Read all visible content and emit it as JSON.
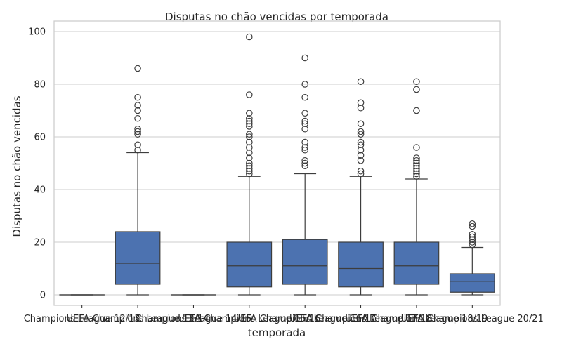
{
  "chart_data": {
    "type": "box",
    "title": "Disputas no chão vencidas por temporada",
    "xlabel": "temporada",
    "ylabel": "Disputas no chão vencidas",
    "ylim": [
      -4,
      104
    ],
    "yticks": [
      0,
      20,
      40,
      60,
      80,
      100
    ],
    "grid": true,
    "box_color": "#4c72b0",
    "line_color": "#3d3d3d",
    "categories": [
      "Champions League 12/13",
      "UEFA Champions League 13/14",
      "Champions League 14/15",
      "UEFA Champions League 15/16",
      "UEFA Champions League 16/17",
      "UEFA Champions League 17/18",
      "UEFA Champions League 18/19",
      "UEFA Champions League 20/21"
    ],
    "boxes": [
      {
        "whislo": 0,
        "q1": 0,
        "med": 0,
        "q3": 0,
        "whishi": 0,
        "fliers": []
      },
      {
        "whislo": 0,
        "q1": 4,
        "med": 12,
        "q3": 24,
        "whishi": 54,
        "fliers": [
          55,
          57,
          61,
          62,
          63,
          67,
          70,
          72,
          75,
          86
        ]
      },
      {
        "whislo": 0,
        "q1": 0,
        "med": 0,
        "q3": 0,
        "whishi": 0,
        "fliers": []
      },
      {
        "whislo": 0,
        "q1": 3,
        "med": 11,
        "q3": 20,
        "whishi": 45,
        "fliers": [
          46,
          47,
          48,
          49,
          50,
          52,
          54,
          56,
          58,
          60,
          61,
          64,
          65,
          66,
          67,
          69,
          76,
          98
        ]
      },
      {
        "whislo": 0,
        "q1": 4,
        "med": 11,
        "q3": 21,
        "whishi": 46,
        "fliers": [
          49,
          50,
          51,
          55,
          56,
          58,
          63,
          65,
          66,
          69,
          75,
          80,
          90
        ]
      },
      {
        "whislo": 0,
        "q1": 3,
        "med": 10,
        "q3": 20,
        "whishi": 45,
        "fliers": [
          46,
          47,
          51,
          53,
          55,
          57,
          58,
          61,
          62,
          65,
          71,
          73,
          81
        ]
      },
      {
        "whislo": 0,
        "q1": 4,
        "med": 11,
        "q3": 20,
        "whishi": 44,
        "fliers": [
          45,
          46,
          47,
          48,
          49,
          50,
          51,
          52,
          56,
          70,
          78,
          81
        ]
      },
      {
        "whislo": 0,
        "q1": 1,
        "med": 5,
        "q3": 8,
        "whishi": 18,
        "fliers": [
          19,
          20,
          21,
          22,
          23,
          26,
          27
        ]
      }
    ]
  }
}
